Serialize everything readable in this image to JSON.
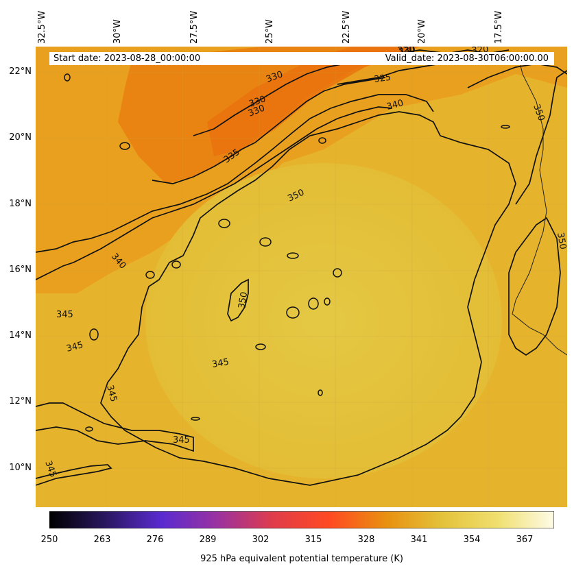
{
  "map": {
    "start_label": "Start date: 2023-08-28_00:00:00",
    "valid_label": "Valid_date: 2023-08-30T06:00:00.00",
    "lon_labels": [
      "32.5°W",
      "30°W",
      "27.5°W",
      "25°W",
      "22.5°W",
      "20°W",
      "17.5°W"
    ],
    "lat_labels": [
      "22°N",
      "20°N",
      "18°N",
      "16°N",
      "14°N",
      "12°N",
      "10°N"
    ],
    "contour_labels": [
      "330",
      "325",
      "320",
      "320",
      "330",
      "330",
      "330",
      "335",
      "340",
      "340",
      "345",
      "345",
      "345",
      "345",
      "345",
      "345",
      "350",
      "350",
      "350",
      "350"
    ],
    "field_colors": {
      "hot": "#e8720c",
      "warm": "#e9a020",
      "mild": "#e6b22a",
      "core": "#e2c43c"
    }
  },
  "colorbar": {
    "ticks": [
      "250",
      "263",
      "276",
      "289",
      "302",
      "315",
      "328",
      "341",
      "354",
      "367"
    ],
    "label": "925 hPa equivalent potential temperature (K)",
    "colors": [
      "#000000",
      "#2a1760",
      "#5a2bd0",
      "#9a32a0",
      "#e03c4a",
      "#ff4a22",
      "#e89010",
      "#e4c23a",
      "#f0e070",
      "#fdfbe8"
    ]
  }
}
